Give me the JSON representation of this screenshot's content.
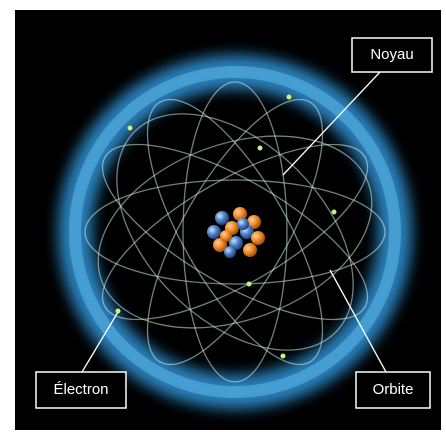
{
  "labels": {
    "nucleus": "Noyau",
    "electron": "Électron",
    "orbit": "Orbite"
  }
}
